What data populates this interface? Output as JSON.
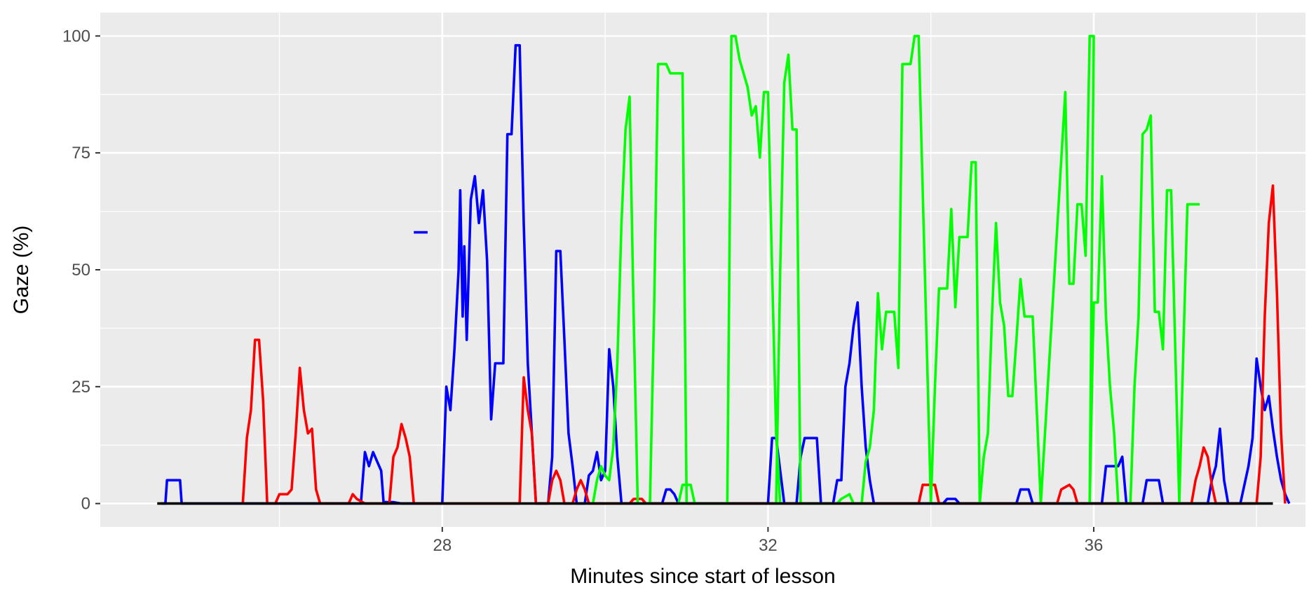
{
  "chart_data": {
    "type": "line",
    "title": "",
    "xlabel": "Minutes since start of lesson",
    "ylabel": "Gaze (%)",
    "xlim": [
      23.8,
      38.6
    ],
    "ylim": [
      -5,
      105
    ],
    "x_ticks": [
      {
        "value": 28,
        "label": "28"
      },
      {
        "value": 32,
        "label": "32"
      },
      {
        "value": 36,
        "label": "36"
      }
    ],
    "y_ticks": [
      {
        "value": 0,
        "label": "0"
      },
      {
        "value": 25,
        "label": "25"
      },
      {
        "value": 50,
        "label": "50"
      },
      {
        "value": 75,
        "label": "75"
      },
      {
        "value": 100,
        "label": "100"
      }
    ],
    "x_minor": [
      26,
      30,
      34,
      38
    ],
    "y_minor": [
      12.5,
      37.5,
      62.5,
      87.5
    ],
    "grid": true,
    "legend": "none",
    "background": "#ebebeb",
    "series": [
      {
        "color": "#0000ff",
        "points": [
          [
            24.55,
            0
          ],
          [
            24.6,
            0
          ],
          [
            24.62,
            5
          ],
          [
            24.78,
            5
          ],
          [
            24.8,
            0
          ],
          [
            25.3,
            0
          ],
          [
            26.95,
            0
          ],
          [
            27.0,
            0
          ],
          [
            27.05,
            11
          ],
          [
            27.1,
            8
          ],
          [
            27.15,
            11
          ],
          [
            27.2,
            9
          ],
          [
            27.25,
            7
          ],
          [
            27.28,
            0
          ],
          [
            27.3,
            0.3
          ],
          [
            27.4,
            0.3
          ],
          [
            27.5,
            0
          ],
          [
            28.0,
            0
          ],
          [
            28.05,
            25
          ],
          [
            28.1,
            20
          ],
          [
            28.15,
            33
          ],
          [
            28.2,
            50
          ],
          [
            28.22,
            67
          ],
          [
            28.25,
            40
          ],
          [
            28.27,
            55
          ],
          [
            28.3,
            35
          ],
          [
            28.35,
            65
          ],
          [
            28.4,
            70
          ],
          [
            28.45,
            60
          ],
          [
            28.5,
            67
          ],
          [
            28.55,
            52
          ],
          [
            28.6,
            18
          ],
          [
            28.65,
            30
          ],
          [
            28.75,
            30
          ],
          [
            28.8,
            79
          ],
          [
            28.85,
            79
          ],
          [
            28.9,
            98
          ],
          [
            28.95,
            98
          ],
          [
            29.0,
            60
          ],
          [
            29.05,
            30
          ],
          [
            29.1,
            15
          ],
          [
            29.15,
            0
          ],
          [
            29.3,
            0
          ],
          [
            29.35,
            10
          ],
          [
            29.4,
            54
          ],
          [
            29.45,
            54
          ],
          [
            29.5,
            35
          ],
          [
            29.55,
            15
          ],
          [
            29.6,
            8
          ],
          [
            29.65,
            0
          ],
          [
            29.75,
            0
          ],
          [
            29.8,
            6
          ],
          [
            29.85,
            7
          ],
          [
            29.9,
            11
          ],
          [
            29.95,
            5
          ],
          [
            30.0,
            7
          ],
          [
            30.05,
            33
          ],
          [
            30.1,
            25
          ],
          [
            30.15,
            10
          ],
          [
            30.2,
            0
          ],
          [
            30.7,
            0
          ],
          [
            30.75,
            3
          ],
          [
            30.8,
            3
          ],
          [
            30.85,
            2
          ],
          [
            30.9,
            0
          ],
          [
            32.0,
            0
          ],
          [
            32.05,
            14
          ],
          [
            32.1,
            14
          ],
          [
            32.15,
            7
          ],
          [
            32.2,
            0
          ],
          [
            32.35,
            0
          ],
          [
            32.4,
            10
          ],
          [
            32.45,
            14
          ],
          [
            32.6,
            14
          ],
          [
            32.65,
            0
          ],
          [
            32.8,
            0
          ],
          [
            32.85,
            5
          ],
          [
            32.9,
            5
          ],
          [
            32.95,
            25
          ],
          [
            33.0,
            30
          ],
          [
            33.05,
            38
          ],
          [
            33.1,
            43
          ],
          [
            33.15,
            25
          ],
          [
            33.2,
            12
          ],
          [
            33.25,
            5
          ],
          [
            33.3,
            0
          ],
          [
            34.15,
            0
          ],
          [
            34.2,
            1
          ],
          [
            34.3,
            1
          ],
          [
            34.35,
            0
          ],
          [
            35.05,
            0
          ],
          [
            35.1,
            3
          ],
          [
            35.2,
            3
          ],
          [
            35.25,
            0
          ],
          [
            36.1,
            0
          ],
          [
            36.15,
            8
          ],
          [
            36.3,
            8
          ],
          [
            36.35,
            10
          ],
          [
            36.4,
            0
          ],
          [
            36.6,
            0
          ],
          [
            36.65,
            5
          ],
          [
            36.8,
            5
          ],
          [
            36.85,
            0
          ],
          [
            37.4,
            0
          ],
          [
            37.45,
            5
          ],
          [
            37.5,
            8
          ],
          [
            37.55,
            16
          ],
          [
            37.6,
            5
          ],
          [
            37.65,
            0
          ],
          [
            37.8,
            0
          ],
          [
            37.85,
            4
          ],
          [
            37.9,
            8
          ],
          [
            37.95,
            14
          ],
          [
            38.0,
            31
          ],
          [
            38.05,
            25
          ],
          [
            38.1,
            20
          ],
          [
            38.15,
            23
          ],
          [
            38.2,
            16
          ],
          [
            38.25,
            10
          ],
          [
            38.3,
            5
          ],
          [
            38.35,
            2
          ],
          [
            38.4,
            0
          ]
        ]
      },
      {
        "color": "#0000ff",
        "points": [
          [
            27.65,
            58
          ],
          [
            27.82,
            58
          ]
        ]
      },
      {
        "color": "#ff0000",
        "points": [
          [
            25.55,
            0
          ],
          [
            25.6,
            14
          ],
          [
            25.65,
            20
          ],
          [
            25.7,
            35
          ],
          [
            25.75,
            35
          ],
          [
            25.8,
            22
          ],
          [
            25.85,
            0
          ],
          [
            25.95,
            0
          ],
          [
            26.0,
            2
          ],
          [
            26.1,
            2
          ],
          [
            26.15,
            3
          ],
          [
            26.2,
            15
          ],
          [
            26.25,
            29
          ],
          [
            26.3,
            20
          ],
          [
            26.35,
            15
          ],
          [
            26.4,
            16
          ],
          [
            26.45,
            3
          ],
          [
            26.5,
            0
          ],
          [
            26.85,
            0
          ],
          [
            26.9,
            2
          ],
          [
            26.95,
            1
          ],
          [
            27.05,
            0
          ],
          [
            27.35,
            0
          ],
          [
            27.4,
            10
          ],
          [
            27.45,
            12
          ],
          [
            27.5,
            17
          ],
          [
            27.55,
            14
          ],
          [
            27.6,
            10
          ],
          [
            27.65,
            0
          ],
          [
            28.95,
            0
          ],
          [
            29.0,
            27
          ],
          [
            29.05,
            20
          ],
          [
            29.1,
            15
          ],
          [
            29.15,
            0
          ],
          [
            29.3,
            0
          ],
          [
            29.35,
            5
          ],
          [
            29.4,
            7
          ],
          [
            29.45,
            5
          ],
          [
            29.5,
            0
          ],
          [
            29.6,
            0
          ],
          [
            29.65,
            3
          ],
          [
            29.7,
            5
          ],
          [
            29.75,
            3
          ],
          [
            29.8,
            0
          ],
          [
            30.3,
            0
          ],
          [
            30.35,
            1
          ],
          [
            30.45,
            1
          ],
          [
            30.5,
            0
          ],
          [
            33.85,
            0
          ],
          [
            33.9,
            4
          ],
          [
            34.05,
            4
          ],
          [
            34.1,
            0
          ],
          [
            35.55,
            0
          ],
          [
            35.6,
            3
          ],
          [
            35.7,
            4
          ],
          [
            35.75,
            3
          ],
          [
            35.8,
            0
          ],
          [
            37.2,
            0
          ],
          [
            37.25,
            5
          ],
          [
            37.3,
            8
          ],
          [
            37.35,
            12
          ],
          [
            37.4,
            10
          ],
          [
            37.45,
            4
          ],
          [
            37.5,
            0
          ],
          [
            38.0,
            0
          ],
          [
            38.05,
            10
          ],
          [
            38.1,
            40
          ],
          [
            38.15,
            60
          ],
          [
            38.2,
            68
          ],
          [
            38.25,
            45
          ],
          [
            38.3,
            15
          ],
          [
            38.35,
            0
          ]
        ]
      },
      {
        "color": "#00ff00",
        "points": [
          [
            29.85,
            0
          ],
          [
            29.9,
            5
          ],
          [
            29.95,
            8
          ],
          [
            30.0,
            6
          ],
          [
            30.05,
            5
          ],
          [
            30.1,
            12
          ],
          [
            30.15,
            30
          ],
          [
            30.2,
            60
          ],
          [
            30.25,
            80
          ],
          [
            30.3,
            87
          ],
          [
            30.35,
            40
          ],
          [
            30.4,
            0
          ],
          [
            30.55,
            0
          ],
          [
            30.6,
            40
          ],
          [
            30.65,
            94
          ],
          [
            30.75,
            94
          ],
          [
            30.8,
            92
          ],
          [
            30.95,
            92
          ],
          [
            31.0,
            0
          ],
          [
            30.9,
            0
          ],
          [
            30.95,
            4
          ],
          [
            31.05,
            4
          ],
          [
            31.1,
            0
          ],
          [
            31.5,
            0
          ],
          [
            31.55,
            100
          ],
          [
            31.6,
            100
          ],
          [
            31.65,
            95
          ],
          [
            31.7,
            92
          ],
          [
            31.75,
            89
          ],
          [
            31.8,
            83
          ],
          [
            31.85,
            85
          ],
          [
            31.9,
            74
          ],
          [
            31.95,
            88
          ],
          [
            32.0,
            88
          ],
          [
            32.05,
            50
          ],
          [
            32.1,
            15
          ],
          [
            32.15,
            0
          ],
          [
            32.1,
            0
          ],
          [
            32.15,
            50
          ],
          [
            32.2,
            90
          ],
          [
            32.25,
            96
          ],
          [
            32.3,
            80
          ],
          [
            32.35,
            80
          ],
          [
            32.4,
            0
          ],
          [
            32.85,
            0
          ],
          [
            32.9,
            1
          ],
          [
            33.0,
            2
          ],
          [
            33.05,
            0
          ],
          [
            33.15,
            0
          ],
          [
            33.2,
            9
          ],
          [
            33.25,
            12
          ],
          [
            33.3,
            20
          ],
          [
            33.35,
            45
          ],
          [
            33.4,
            33
          ],
          [
            33.45,
            41
          ],
          [
            33.55,
            41
          ],
          [
            33.6,
            29
          ],
          [
            33.65,
            94
          ],
          [
            33.75,
            94
          ],
          [
            33.8,
            100
          ],
          [
            33.85,
            100
          ],
          [
            34.0,
            0
          ],
          [
            34.05,
            25
          ],
          [
            34.1,
            46
          ],
          [
            34.2,
            46
          ],
          [
            34.25,
            63
          ],
          [
            34.3,
            42
          ],
          [
            34.35,
            57
          ],
          [
            34.45,
            57
          ],
          [
            34.5,
            73
          ],
          [
            34.55,
            73
          ],
          [
            34.6,
            0
          ],
          [
            34.65,
            10
          ],
          [
            34.7,
            15
          ],
          [
            34.75,
            40
          ],
          [
            34.8,
            60
          ],
          [
            34.85,
            43
          ],
          [
            34.9,
            38
          ],
          [
            34.95,
            23
          ],
          [
            35.0,
            23
          ],
          [
            35.05,
            35
          ],
          [
            35.1,
            48
          ],
          [
            35.15,
            40
          ],
          [
            35.25,
            40
          ],
          [
            35.3,
            20
          ],
          [
            35.35,
            0
          ],
          [
            35.65,
            88
          ],
          [
            35.7,
            47
          ],
          [
            35.75,
            47
          ],
          [
            35.8,
            64
          ],
          [
            35.85,
            64
          ],
          [
            35.9,
            53
          ],
          [
            35.95,
            100
          ],
          [
            36.0,
            100
          ],
          [
            35.95,
            0
          ],
          [
            36.0,
            43
          ],
          [
            36.05,
            43
          ],
          [
            36.1,
            70
          ],
          [
            36.15,
            40
          ],
          [
            36.2,
            25
          ],
          [
            36.25,
            15
          ],
          [
            36.3,
            0
          ],
          [
            36.45,
            0
          ],
          [
            36.5,
            25
          ],
          [
            36.55,
            40
          ],
          [
            36.6,
            79
          ],
          [
            36.65,
            80
          ],
          [
            36.7,
            83
          ],
          [
            36.75,
            41
          ],
          [
            36.8,
            41
          ],
          [
            36.85,
            33
          ],
          [
            36.9,
            67
          ],
          [
            36.95,
            67
          ],
          [
            37.05,
            0
          ],
          [
            37.1,
            33
          ],
          [
            37.15,
            64
          ],
          [
            37.3,
            64
          ]
        ]
      },
      {
        "color": "#ffff00",
        "points": [
          [
            24.5,
            0
          ],
          [
            24.55,
            0
          ]
        ]
      },
      {
        "color": "#000000",
        "points": [
          [
            24.5,
            0
          ],
          [
            38.2,
            0
          ]
        ]
      }
    ]
  }
}
